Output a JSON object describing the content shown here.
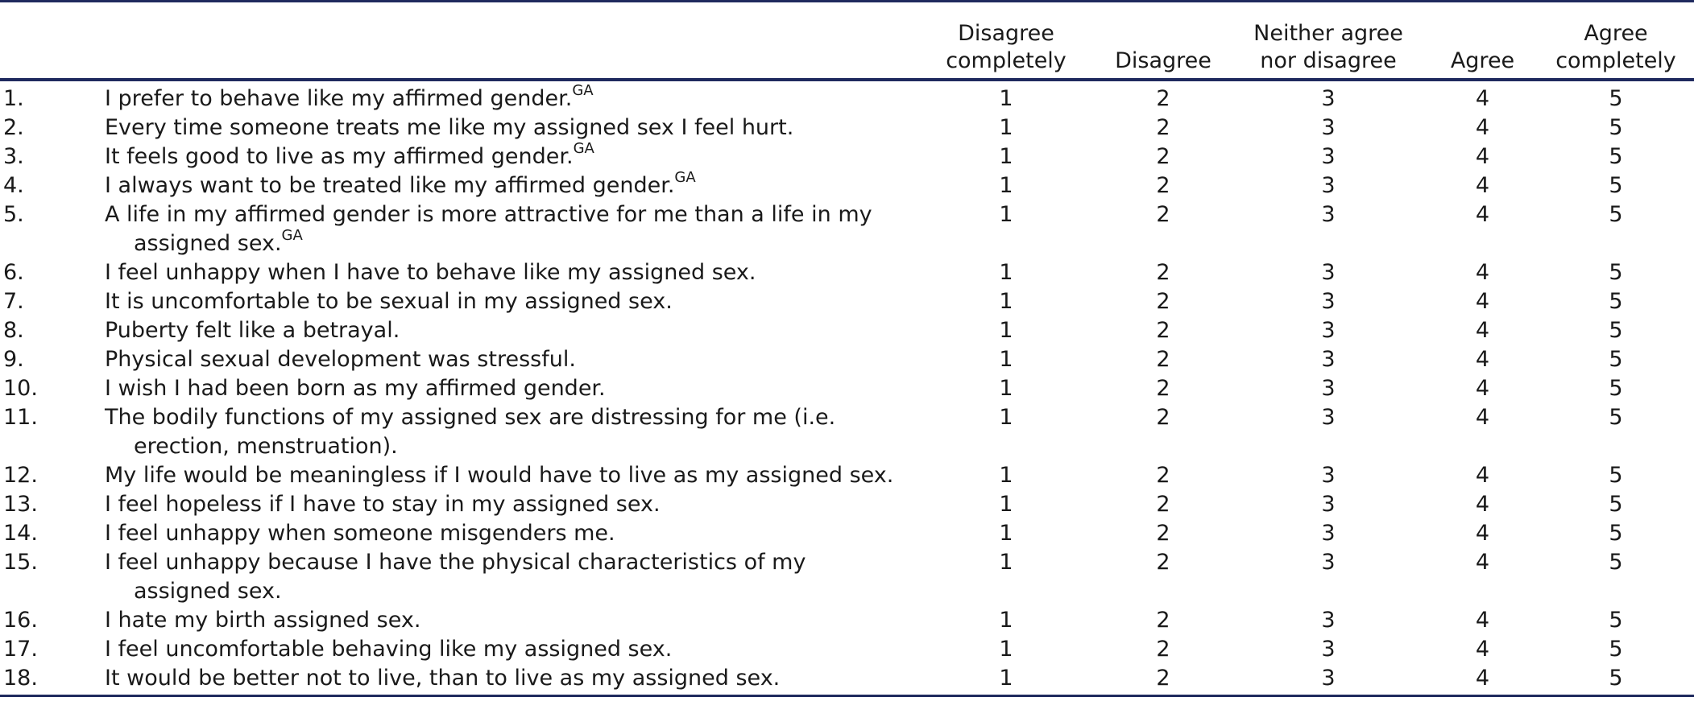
{
  "table": {
    "headers": {
      "col1_line1": "Disagree",
      "col1_line2": "completely",
      "col2": "Disagree",
      "col3_line1": "Neither agree",
      "col3_line2": "nor disagree",
      "col4": "Agree",
      "col5_line1": "Agree",
      "col5_line2": "completely"
    },
    "rows": [
      {
        "num": "1.",
        "text": "I prefer to behave like my affirmed gender.",
        "sup": "GA",
        "v1": "1",
        "v2": "2",
        "v3": "3",
        "v4": "4",
        "v5": "5"
      },
      {
        "num": "2.",
        "text": "Every time someone treats me like my assigned sex I feel hurt.",
        "v1": "1",
        "v2": "2",
        "v3": "3",
        "v4": "4",
        "v5": "5"
      },
      {
        "num": "3.",
        "text": "It feels good to live as my affirmed gender.",
        "sup": "GA",
        "v1": "1",
        "v2": "2",
        "v3": "3",
        "v4": "4",
        "v5": "5"
      },
      {
        "num": "4.",
        "text": "I always want to be treated like my affirmed gender.",
        "sup": "GA",
        "v1": "1",
        "v2": "2",
        "v3": "3",
        "v4": "4",
        "v5": "5"
      },
      {
        "num": "5.",
        "text": "A life in my affirmed gender is more attractive for me than a life in my",
        "text_cont": "assigned sex.",
        "sup": "GA",
        "v1": "1",
        "v2": "2",
        "v3": "3",
        "v4": "4",
        "v5": "5"
      },
      {
        "num": "6.",
        "text": "I feel unhappy when I have to behave like my assigned sex.",
        "v1": "1",
        "v2": "2",
        "v3": "3",
        "v4": "4",
        "v5": "5"
      },
      {
        "num": "7.",
        "text": "It is uncomfortable to be sexual in my assigned sex.",
        "v1": "1",
        "v2": "2",
        "v3": "3",
        "v4": "4",
        "v5": "5"
      },
      {
        "num": "8.",
        "text": "Puberty felt like a betrayal.",
        "v1": "1",
        "v2": "2",
        "v3": "3",
        "v4": "4",
        "v5": "5"
      },
      {
        "num": "9.",
        "text": "Physical sexual development was stressful.",
        "v1": "1",
        "v2": "2",
        "v3": "3",
        "v4": "4",
        "v5": "5"
      },
      {
        "num": "10.",
        "text": "I wish I had been born as my affirmed gender.",
        "v1": "1",
        "v2": "2",
        "v3": "3",
        "v4": "4",
        "v5": "5"
      },
      {
        "num": "11.",
        "text": "The bodily functions of my assigned sex are distressing for me (i.e.",
        "text_cont": "erection, menstruation).",
        "v1": "1",
        "v2": "2",
        "v3": "3",
        "v4": "4",
        "v5": "5"
      },
      {
        "num": "12.",
        "text": "My life would be meaningless if I would have to live as my assigned sex.",
        "v1": "1",
        "v2": "2",
        "v3": "3",
        "v4": "4",
        "v5": "5"
      },
      {
        "num": "13.",
        "text": "I feel hopeless if I have to stay in my assigned sex.",
        "v1": "1",
        "v2": "2",
        "v3": "3",
        "v4": "4",
        "v5": "5"
      },
      {
        "num": "14.",
        "text": "I feel unhappy when someone misgenders me.",
        "v1": "1",
        "v2": "2",
        "v3": "3",
        "v4": "4",
        "v5": "5"
      },
      {
        "num": "15.",
        "text": "I feel unhappy because I have the physical characteristics of my",
        "text_cont": "assigned sex.",
        "v1": "1",
        "v2": "2",
        "v3": "3",
        "v4": "4",
        "v5": "5"
      },
      {
        "num": "16.",
        "text": "I hate my birth assigned sex.",
        "v1": "1",
        "v2": "2",
        "v3": "3",
        "v4": "4",
        "v5": "5"
      },
      {
        "num": "17.",
        "text": "I feel uncomfortable behaving like my assigned sex.",
        "v1": "1",
        "v2": "2",
        "v3": "3",
        "v4": "4",
        "v5": "5"
      },
      {
        "num": "18.",
        "text": "It would be better not to live, than to live as my assigned sex.",
        "v1": "1",
        "v2": "2",
        "v3": "3",
        "v4": "4",
        "v5": "5"
      }
    ]
  },
  "colors": {
    "rule": "#1f2a5e",
    "text": "#1a1a1a"
  }
}
